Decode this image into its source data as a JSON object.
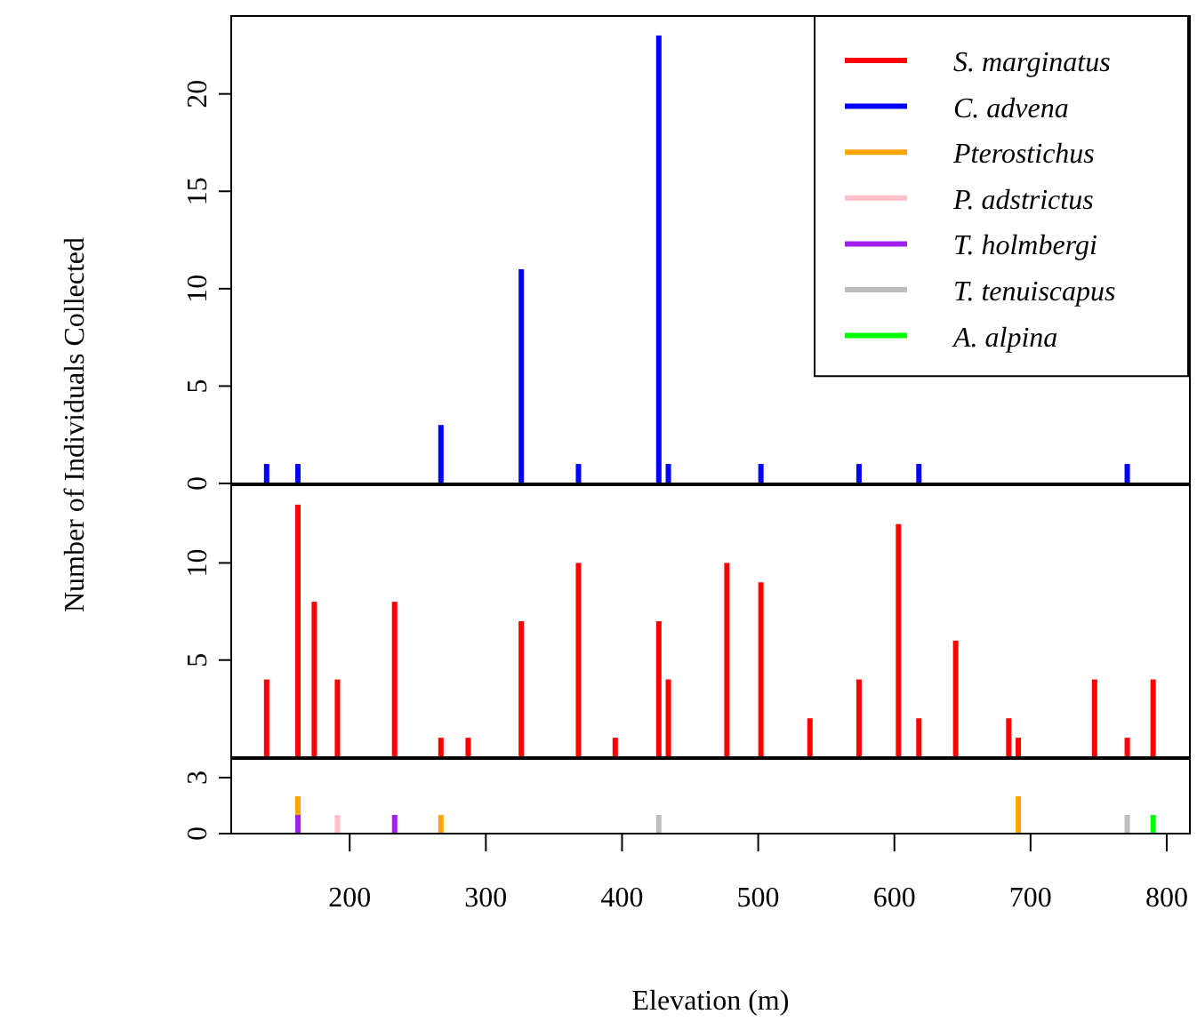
{
  "chart_data": [
    {
      "type": "bar",
      "ylabel": "Number of Individuals Collected",
      "x": [
        139,
        162,
        174,
        191,
        233,
        267,
        287,
        326,
        368,
        395,
        427,
        434,
        477,
        502,
        538,
        574,
        603,
        618,
        645,
        684,
        691,
        747,
        771,
        790
      ],
      "xlim": [
        113,
        817
      ],
      "ylim": [
        0,
        24
      ],
      "yticks": [
        0,
        5,
        10,
        15,
        20
      ],
      "tick_labels": "y",
      "legend": "top right",
      "series": [
        {
          "name": "C. advena",
          "color": "#0000ff",
          "values": [
            1,
            1,
            0,
            0,
            0,
            3,
            0,
            11,
            1,
            0,
            23,
            1,
            0,
            1,
            0,
            1,
            0,
            1,
            0,
            0,
            0,
            0,
            1,
            0
          ]
        }
      ]
    },
    {
      "type": "bar",
      "x": [
        139,
        162,
        174,
        191,
        233,
        267,
        287,
        326,
        368,
        395,
        427,
        434,
        477,
        502,
        538,
        574,
        603,
        618,
        645,
        684,
        691,
        747,
        771,
        790
      ],
      "xlim": [
        113,
        817
      ],
      "ylim": [
        0,
        14
      ],
      "yticks": [
        5,
        10
      ],
      "tick_labels": "y",
      "legend": "top right",
      "series": [
        {
          "name": "S. marginatus",
          "color": "#ff0000",
          "values": [
            4,
            13,
            8,
            4,
            8,
            1,
            1,
            7,
            10,
            1,
            7,
            4,
            10,
            9,
            2,
            4,
            12,
            2,
            6,
            2,
            1,
            4,
            1,
            4
          ]
        }
      ]
    },
    {
      "type": "bar",
      "stacked": true,
      "xlabel": "Elevation (m)",
      "x": [
        139,
        162,
        174,
        191,
        233,
        267,
        287,
        326,
        368,
        395,
        427,
        434,
        477,
        502,
        538,
        574,
        603,
        618,
        645,
        684,
        691,
        747,
        771,
        790
      ],
      "xlim": [
        113,
        817
      ],
      "ylim": [
        0,
        4
      ],
      "yticks": [
        0,
        3
      ],
      "legend": "top right",
      "xticks": [
        200,
        300,
        400,
        500,
        600,
        700,
        800
      ],
      "series": [
        {
          "name": "T. holmbergi",
          "color": "#a020f0",
          "values": [
            0,
            1,
            0,
            0,
            1,
            0,
            0,
            0,
            0,
            0,
            0,
            0,
            0,
            0,
            0,
            0,
            0,
            0,
            0,
            0,
            0,
            0,
            0,
            0
          ]
        },
        {
          "name": "Pterostichus",
          "color": "#ffa500",
          "values": [
            0,
            1,
            0,
            0,
            0,
            1,
            0,
            0,
            0,
            0,
            0,
            0,
            0,
            0,
            0,
            0,
            0,
            0,
            0,
            0,
            2,
            0,
            0,
            0
          ]
        },
        {
          "name": "P. adstrictus",
          "color": "#ffc0cb",
          "values": [
            0,
            0,
            0,
            1,
            0,
            0,
            0,
            0,
            0,
            0,
            0,
            0,
            0,
            0,
            0,
            0,
            0,
            0,
            0,
            0,
            0,
            0,
            0,
            0
          ]
        },
        {
          "name": "T. tenuiscapus",
          "color": "#bebebe",
          "values": [
            0,
            0,
            0,
            0,
            0,
            0,
            0,
            0,
            0,
            0,
            1,
            0,
            0,
            0,
            0,
            0,
            0,
            0,
            0,
            0,
            0,
            0,
            1,
            0
          ]
        },
        {
          "name": "A. alpina",
          "color": "#00ff00",
          "values": [
            0,
            0,
            0,
            0,
            0,
            0,
            0,
            0,
            0,
            0,
            0,
            0,
            0,
            0,
            0,
            0,
            0,
            0,
            0,
            0,
            0,
            0,
            0,
            1
          ]
        }
      ]
    }
  ]
}
